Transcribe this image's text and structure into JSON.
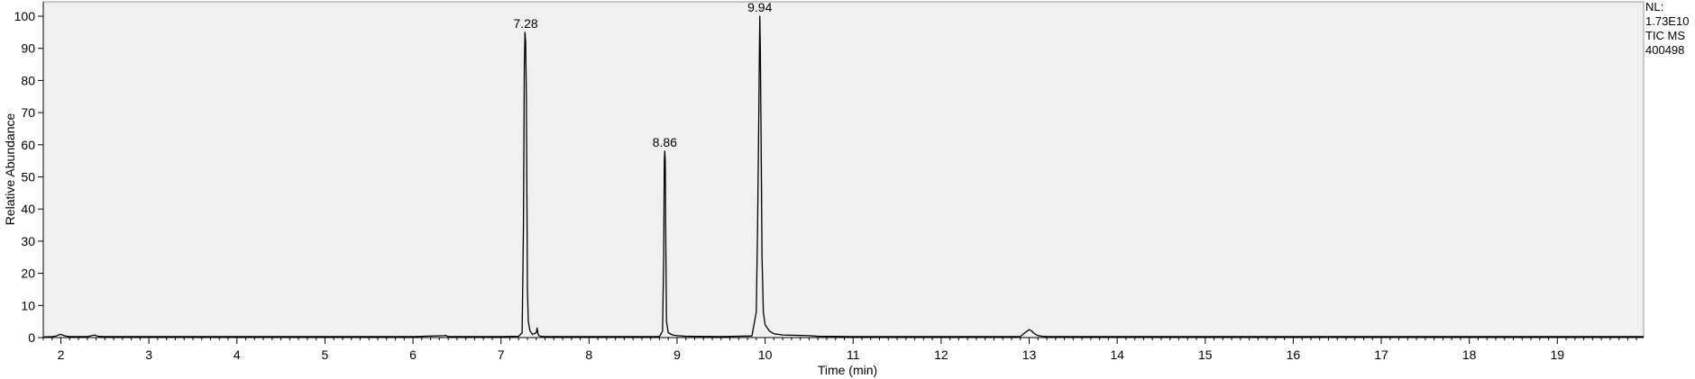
{
  "chart_data": {
    "type": "line",
    "title": "",
    "xlabel": "Time (min)",
    "ylabel": "Relative Abundance",
    "xlim": [
      1.8,
      19.98
    ],
    "ylim": [
      0,
      100
    ],
    "x_ticks": [
      2,
      3,
      4,
      5,
      6,
      7,
      8,
      9,
      10,
      11,
      12,
      13,
      14,
      15,
      16,
      17,
      18,
      19
    ],
    "y_ticks": [
      0,
      10,
      20,
      30,
      40,
      50,
      60,
      70,
      80,
      90,
      100
    ],
    "grid": false,
    "background_color": "#f0f0f0",
    "line_color": "#000000",
    "info": [
      "NL:",
      "1.73E10",
      "TIC  MS",
      "400498"
    ],
    "peak_labels": [
      {
        "x": 7.28,
        "y": 95,
        "text": "7.28"
      },
      {
        "x": 8.86,
        "y": 58,
        "text": "8.86"
      },
      {
        "x": 9.94,
        "y": 100,
        "text": "9.94"
      }
    ],
    "series": [
      {
        "x": [
          1.8,
          1.9,
          1.95,
          1.98,
          2.0,
          2.02,
          2.05,
          2.1,
          2.3,
          2.35,
          2.38,
          2.42,
          2.5,
          3.0,
          4.0,
          5.0,
          6.0,
          6.35,
          6.37,
          6.4,
          7.0,
          7.2,
          7.24,
          7.255,
          7.265,
          7.272,
          7.28,
          7.288,
          7.295,
          7.3,
          7.31,
          7.33,
          7.36,
          7.4,
          7.41,
          7.42,
          7.43,
          7.45,
          7.5,
          8.0,
          8.8,
          8.835,
          8.848,
          8.855,
          8.86,
          8.866,
          8.872,
          8.88,
          8.9,
          8.95,
          9.0,
          9.1,
          9.5,
          9.85,
          9.9,
          9.915,
          9.925,
          9.935,
          9.94,
          9.946,
          9.955,
          9.965,
          9.98,
          10.0,
          10.05,
          10.1,
          10.2,
          10.5,
          10.6,
          11.0,
          12.0,
          12.9,
          12.95,
          13.0,
          13.03,
          13.06,
          13.1,
          13.15,
          13.2,
          14.0,
          15.0,
          16.0,
          17.0,
          18.0,
          19.0,
          19.98
        ],
        "y": [
          0.2,
          0.3,
          0.5,
          0.9,
          1.0,
          0.8,
          0.5,
          0.3,
          0.3,
          0.6,
          0.8,
          0.4,
          0.3,
          0.3,
          0.3,
          0.3,
          0.3,
          0.6,
          0.7,
          0.3,
          0.3,
          0.4,
          1.5,
          35,
          85,
          95,
          92,
          75,
          40,
          15,
          5,
          2,
          1,
          1.5,
          3,
          1.2,
          0.6,
          0.4,
          0.3,
          0.3,
          0.3,
          2,
          25,
          55,
          58,
          55,
          30,
          5,
          1.5,
          0.8,
          0.6,
          0.4,
          0.3,
          0.5,
          8,
          35,
          60,
          88,
          100,
          90,
          60,
          25,
          8,
          4,
          2,
          1.2,
          0.8,
          0.6,
          0.4,
          0.3,
          0.3,
          0.3,
          1.5,
          2.5,
          2.0,
          1.2,
          0.6,
          0.4,
          0.3,
          0.3,
          0.3,
          0.3,
          0.3,
          0.3,
          0.3,
          0.3
        ]
      }
    ]
  }
}
